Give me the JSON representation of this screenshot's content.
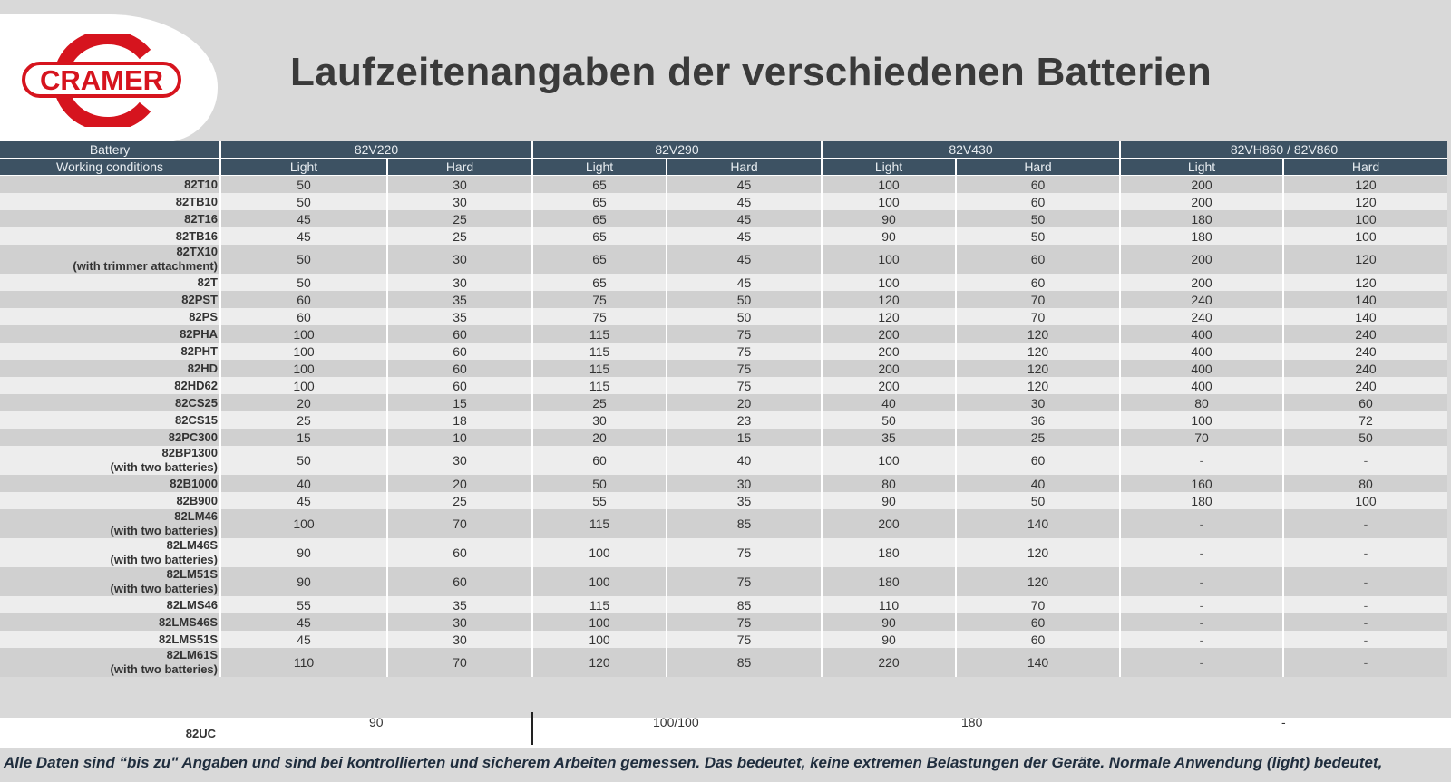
{
  "title": "Laufzeitenangaben der verschiedenen Batterien",
  "logo_text": "CRAMER",
  "colors": {
    "header_bg": "#3d5263",
    "brand_red": "#d6141e"
  },
  "table": {
    "battery_label": "Battery",
    "conditions_label": "Working conditions",
    "batteries": [
      "82V220",
      "82V290",
      "82V430",
      "82VH860 / 82V860"
    ],
    "light_label": "Light",
    "hard_label": "Hard",
    "rows": [
      {
        "name": "82T10",
        "vals": [
          "50",
          "30",
          "65",
          "45",
          "100",
          "60",
          "200",
          "120"
        ]
      },
      {
        "name": "82TB10",
        "vals": [
          "50",
          "30",
          "65",
          "45",
          "100",
          "60",
          "200",
          "120"
        ]
      },
      {
        "name": "82T16",
        "vals": [
          "45",
          "25",
          "65",
          "45",
          "90",
          "50",
          "180",
          "100"
        ]
      },
      {
        "name": "82TB16",
        "vals": [
          "45",
          "25",
          "65",
          "45",
          "90",
          "50",
          "180",
          "100"
        ]
      },
      {
        "name": "82TX10",
        "sub": "(with trimmer attachment)",
        "vals": [
          "50",
          "30",
          "65",
          "45",
          "100",
          "60",
          "200",
          "120"
        ]
      },
      {
        "name": "82T",
        "vals": [
          "50",
          "30",
          "65",
          "45",
          "100",
          "60",
          "200",
          "120"
        ]
      },
      {
        "name": "82PST",
        "vals": [
          "60",
          "35",
          "75",
          "50",
          "120",
          "70",
          "240",
          "140"
        ]
      },
      {
        "name": "82PS",
        "vals": [
          "60",
          "35",
          "75",
          "50",
          "120",
          "70",
          "240",
          "140"
        ]
      },
      {
        "name": "82PHA",
        "vals": [
          "100",
          "60",
          "115",
          "75",
          "200",
          "120",
          "400",
          "240"
        ]
      },
      {
        "name": "82PHT",
        "vals": [
          "100",
          "60",
          "115",
          "75",
          "200",
          "120",
          "400",
          "240"
        ]
      },
      {
        "name": "82HD",
        "vals": [
          "100",
          "60",
          "115",
          "75",
          "200",
          "120",
          "400",
          "240"
        ]
      },
      {
        "name": "82HD62",
        "vals": [
          "100",
          "60",
          "115",
          "75",
          "200",
          "120",
          "400",
          "240"
        ]
      },
      {
        "name": "82CS25",
        "vals": [
          "20",
          "15",
          "25",
          "20",
          "40",
          "30",
          "80",
          "60"
        ]
      },
      {
        "name": "82CS15",
        "vals": [
          "25",
          "18",
          "30",
          "23",
          "50",
          "36",
          "100",
          "72"
        ]
      },
      {
        "name": "82PC300",
        "vals": [
          "15",
          "10",
          "20",
          "15",
          "35",
          "25",
          "70",
          "50"
        ]
      },
      {
        "name": "82BP1300",
        "sub": "(with two batteries)",
        "vals": [
          "50",
          "30",
          "60",
          "40",
          "100",
          "60",
          "-",
          "-"
        ]
      },
      {
        "name": "82B1000",
        "vals": [
          "40",
          "20",
          "50",
          "30",
          "80",
          "40",
          "160",
          "80"
        ]
      },
      {
        "name": "82B900",
        "vals": [
          "45",
          "25",
          "55",
          "35",
          "90",
          "50",
          "180",
          "100"
        ]
      },
      {
        "name": "82LM46",
        "sub": "(with two batteries)",
        "vals": [
          "100",
          "70",
          "115",
          "85",
          "200",
          "140",
          "-",
          "-"
        ]
      },
      {
        "name": "82LM46S",
        "sub": "(with two batteries)",
        "vals": [
          "90",
          "60",
          "100",
          "75",
          "180",
          "120",
          "-",
          "-"
        ]
      },
      {
        "name": "82LM51S",
        "sub": "(with two batteries)",
        "vals": [
          "90",
          "60",
          "100",
          "75",
          "180",
          "120",
          "-",
          "-"
        ]
      },
      {
        "name": "82LMS46",
        "vals": [
          "55",
          "35",
          "115",
          "85",
          "110",
          "70",
          "-",
          "-"
        ]
      },
      {
        "name": "82LMS46S",
        "vals": [
          "45",
          "30",
          "100",
          "75",
          "90",
          "60",
          "-",
          "-"
        ]
      },
      {
        "name": "82LMS51S",
        "vals": [
          "45",
          "30",
          "100",
          "75",
          "90",
          "60",
          "-",
          "-"
        ]
      },
      {
        "name": "82LM61S",
        "sub": "(with two batteries)",
        "vals": [
          "110",
          "70",
          "120",
          "85",
          "220",
          "140",
          "-",
          "-"
        ]
      }
    ],
    "uc_row": {
      "name": "82UC",
      "vals": [
        "90",
        "100/100",
        "180",
        "-"
      ]
    }
  },
  "footnote": "Alle Daten sind  “bis zu\" Angaben und sind bei kontrollierten und sicherem Arbeiten gemessen. Das bedeutet, keine extremen Belastungen der Geräte. Normale Anwendung (light) bedeutet,"
}
